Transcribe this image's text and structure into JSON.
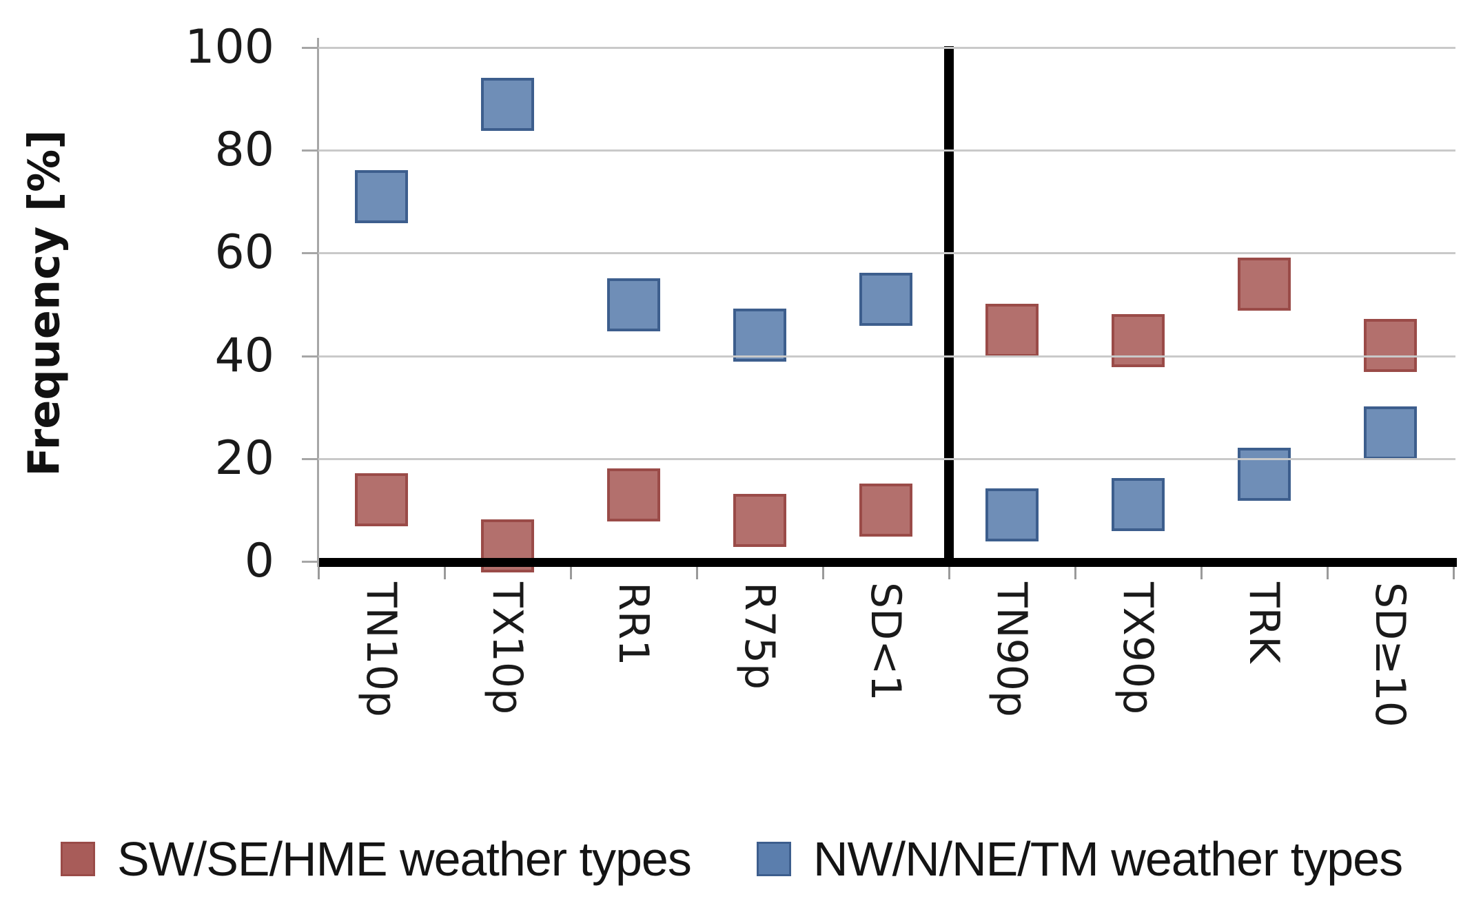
{
  "chart_data": {
    "type": "scatter",
    "marker_shape": "square",
    "title": "",
    "xlabel": "",
    "ylabel": "Frequency [%]",
    "ylim": [
      0,
      100
    ],
    "y_ticks": [
      100,
      80,
      60,
      40,
      20,
      0
    ],
    "grid": true,
    "legend_position": "bottom",
    "categories": [
      "TN10p",
      "TX10p",
      "RR1",
      "R75p",
      "SD<1",
      "TN90p",
      "TX90p",
      "TRK",
      "SD≥10"
    ],
    "divider_after_index": 4,
    "series": [
      {
        "name": "SW/SE/HME weather types",
        "color": "#a85c59",
        "border_color": "#9a4b48",
        "values": [
          12,
          3,
          13,
          8,
          10,
          45,
          43,
          54,
          42
        ]
      },
      {
        "name": "NW/N/NE/TM weather types",
        "color": "#5b7ead",
        "border_color": "#3d5e8d",
        "values": [
          71,
          89,
          50,
          44,
          51,
          9,
          11,
          17,
          25
        ]
      }
    ],
    "axis_color": "#a6a6a6",
    "gridline_color": "#c9c9c9",
    "divider_color": "#000000",
    "text_color": "#1a1a1a"
  }
}
